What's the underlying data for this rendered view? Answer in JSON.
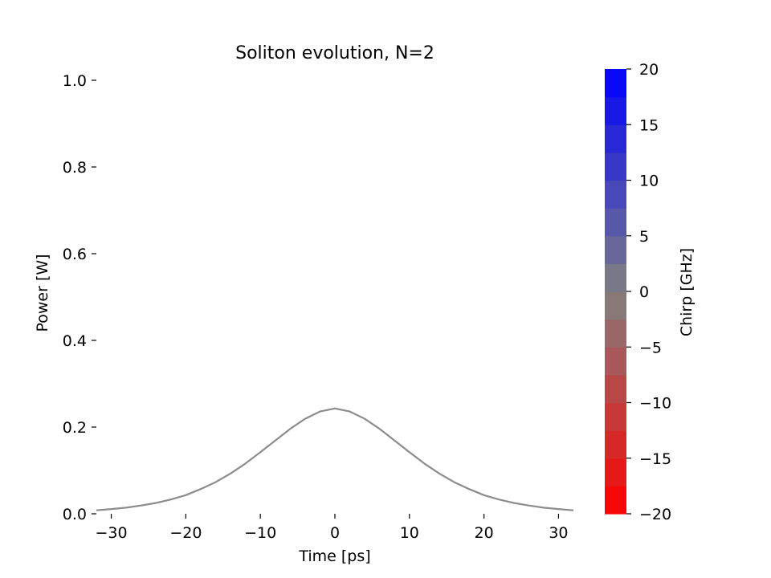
{
  "chart_data": {
    "type": "line",
    "title": "Soliton evolution, N=2",
    "xlabel": "Time [ps]",
    "ylabel": "Power [W]",
    "xlim": [
      -32,
      32
    ],
    "ylim": [
      0,
      1.0
    ],
    "xticks": [
      -30,
      -20,
      -10,
      0,
      10,
      20,
      30
    ],
    "yticks": [
      0.0,
      0.2,
      0.4,
      0.6,
      0.8,
      1.0
    ],
    "grid": false,
    "series": [
      {
        "color": "#8c8c8c",
        "x": [
          -32,
          -30,
          -28,
          -26,
          -24,
          -22,
          -20,
          -18,
          -16,
          -14,
          -12,
          -10,
          -8,
          -6,
          -4,
          -2,
          0,
          2,
          4,
          6,
          8,
          10,
          12,
          14,
          16,
          18,
          20,
          22,
          24,
          26,
          28,
          30,
          32
        ],
        "y": [
          0.008,
          0.011,
          0.014,
          0.019,
          0.025,
          0.033,
          0.043,
          0.057,
          0.073,
          0.093,
          0.116,
          0.142,
          0.169,
          0.196,
          0.219,
          0.236,
          0.243,
          0.236,
          0.219,
          0.196,
          0.169,
          0.142,
          0.116,
          0.093,
          0.073,
          0.057,
          0.043,
          0.033,
          0.025,
          0.019,
          0.014,
          0.011,
          0.008
        ]
      }
    ],
    "colorbar": {
      "label": "Chirp [GHz]",
      "range": [
        -20,
        20
      ],
      "ticks": [
        "20",
        "15",
        "10",
        "5",
        "0",
        "−5",
        "−10",
        "−15",
        "−20"
      ],
      "tick_values": [
        20,
        15,
        10,
        5,
        0,
        -5,
        -10,
        -15,
        -20
      ],
      "low_color": "#ff0000",
      "mid_color": "#808080",
      "high_color": "#0000ff",
      "levels": 16
    }
  }
}
